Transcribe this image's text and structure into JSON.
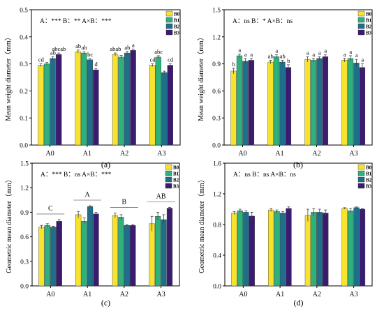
{
  "colors": [
    "#F7E22D",
    "#2EB27B",
    "#1F6F8B",
    "#3B1B72"
  ],
  "chart_data": [
    {
      "type": "bar",
      "panel_label": "(a)",
      "ylabel": "Mean weight diameter（mm）",
      "ylim": [
        0.0,
        0.5
      ],
      "yticks": [
        0.0,
        0.1,
        0.2,
        0.3,
        0.4,
        0.5
      ],
      "categories": [
        "A0",
        "A1",
        "A2",
        "A3"
      ],
      "stats_text": "A：***  B：**  A×B：***",
      "series": [
        {
          "name": "B0",
          "values": [
            0.295,
            0.345,
            0.335,
            0.295
          ],
          "errors": [
            0.005,
            0.006,
            0.005,
            0.005
          ],
          "letters": [
            "cd",
            "ab",
            "abab",
            "cd"
          ]
        },
        {
          "name": "B1",
          "values": [
            0.3,
            0.34,
            0.325,
            0.325
          ],
          "errors": [
            0.005,
            0.005,
            0.006,
            0.005
          ],
          "letters": [
            "",
            "ab",
            "",
            "abc"
          ]
        },
        {
          "name": "B2",
          "values": [
            0.32,
            0.315,
            0.34,
            0.268
          ],
          "errors": [
            0.006,
            0.005,
            0.006,
            0.005
          ],
          "letters": [
            "ab",
            "bc",
            "ab",
            ""
          ]
        },
        {
          "name": "B3",
          "values": [
            0.335,
            0.278,
            0.35,
            0.295
          ],
          "errors": [
            0.005,
            0.005,
            0.005,
            0.005
          ],
          "letters": [
            "abcab",
            "d",
            "a",
            "cd"
          ]
        }
      ]
    },
    {
      "type": "bar",
      "panel_label": "(b)",
      "ylabel": "Mean weight diameter（mm）",
      "ylim": [
        0.0,
        1.5
      ],
      "yticks": [
        0.0,
        0.3,
        0.6,
        0.9,
        1.2,
        1.5
      ],
      "categories": [
        "A0",
        "A1",
        "A2",
        "A3"
      ],
      "stats_text": "A：ns  B：*  A×B：ns",
      "series": [
        {
          "name": "B0",
          "values": [
            0.82,
            0.92,
            0.95,
            0.94
          ],
          "errors": [
            0.03,
            0.02,
            0.03,
            0.02
          ],
          "letters": [
            "b",
            "ab",
            "a",
            "a"
          ]
        },
        {
          "name": "B1",
          "values": [
            0.99,
            0.98,
            0.94,
            0.96
          ],
          "errors": [
            0.02,
            0.02,
            0.02,
            0.03
          ],
          "letters": [
            "a",
            "a",
            "a",
            "a"
          ]
        },
        {
          "name": "B2",
          "values": [
            0.93,
            0.92,
            0.96,
            0.91
          ],
          "errors": [
            0.03,
            0.02,
            0.02,
            0.04
          ],
          "letters": [
            "a",
            "ab",
            "a",
            "a"
          ]
        },
        {
          "name": "B3",
          "values": [
            0.94,
            0.86,
            0.98,
            0.86
          ],
          "errors": [
            0.02,
            0.03,
            0.02,
            0.04
          ],
          "letters": [
            "a",
            "b",
            "a",
            "a"
          ]
        }
      ]
    },
    {
      "type": "bar",
      "panel_label": "(c)",
      "ylabel": "Geometric mean diameter（mm）",
      "ylim": [
        0.0,
        1.5
      ],
      "yticks": [
        0.0,
        0.3,
        0.6,
        0.9,
        1.2,
        1.5
      ],
      "categories": [
        "A0",
        "A1",
        "A2",
        "A3"
      ],
      "stats_text": "A：***  B：ns  A×B：***",
      "group_letters": [
        "C",
        "A",
        "B",
        "AB"
      ],
      "series": [
        {
          "name": "B0",
          "values": [
            0.72,
            0.87,
            0.86,
            0.76
          ],
          "errors": [
            0.02,
            0.04,
            0.03,
            0.09
          ],
          "letters": [
            "",
            "",
            "",
            ""
          ]
        },
        {
          "name": "B1",
          "values": [
            0.74,
            0.79,
            0.84,
            0.85
          ],
          "errors": [
            0.02,
            0.04,
            0.03,
            0.05
          ],
          "letters": [
            "",
            "",
            "",
            ""
          ]
        },
        {
          "name": "B2",
          "values": [
            0.72,
            0.97,
            0.74,
            0.81
          ],
          "errors": [
            0.01,
            0.01,
            0.01,
            0.06
          ],
          "letters": [
            "",
            "",
            "",
            ""
          ]
        },
        {
          "name": "B3",
          "values": [
            0.79,
            0.88,
            0.74,
            0.95
          ],
          "errors": [
            0.02,
            0.02,
            0.01,
            0.01
          ],
          "letters": [
            "",
            "",
            "",
            ""
          ]
        }
      ]
    },
    {
      "type": "bar",
      "panel_label": "(d)",
      "ylabel": "Geometric mean diameter（mm）",
      "ylim": [
        0.0,
        1.6
      ],
      "yticks": [
        0.0,
        0.4,
        0.8,
        1.2,
        1.6
      ],
      "categories": [
        "A0",
        "A1",
        "A2",
        "A3"
      ],
      "stats_text": "A：ns  B：ns  A×B：ns",
      "series": [
        {
          "name": "B0",
          "values": [
            0.95,
            0.99,
            0.92,
            1.01
          ],
          "errors": [
            0.02,
            0.02,
            0.08,
            0.01
          ],
          "letters": [
            "",
            "",
            "",
            ""
          ]
        },
        {
          "name": "B1",
          "values": [
            0.98,
            0.97,
            0.96,
            0.98
          ],
          "errors": [
            0.02,
            0.02,
            0.05,
            0.03
          ],
          "letters": [
            "",
            "",
            "",
            ""
          ]
        },
        {
          "name": "B2",
          "values": [
            0.96,
            0.95,
            0.96,
            1.02
          ],
          "errors": [
            0.02,
            0.02,
            0.04,
            0.01
          ],
          "letters": [
            "",
            "",
            "",
            ""
          ]
        },
        {
          "name": "B3",
          "values": [
            0.91,
            1.01,
            0.95,
            1.0
          ],
          "errors": [
            0.05,
            0.02,
            0.04,
            0.01
          ],
          "letters": [
            "",
            "",
            "",
            ""
          ]
        }
      ]
    }
  ]
}
